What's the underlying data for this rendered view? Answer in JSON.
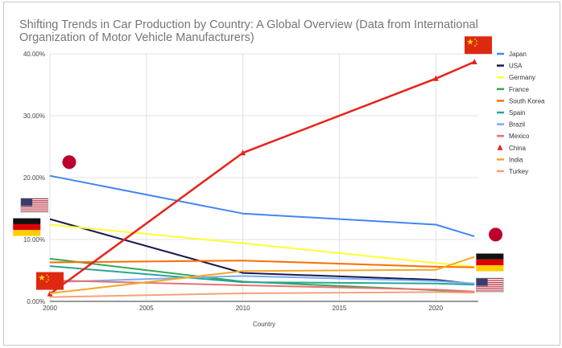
{
  "chart_data": {
    "type": "line",
    "title": "Shifting Trends in Car Production by Country: A Global Overview (Data from International Organization of Motor Vehicle Manufacturers)",
    "xlabel": "Country",
    "ylabel": "",
    "x": [
      2000,
      2010,
      2020,
      2022
    ],
    "xlim": [
      2000,
      2022.2
    ],
    "ylim": [
      0,
      40
    ],
    "xticks": [
      2000,
      2005,
      2010,
      2015,
      2020
    ],
    "yticks": [
      0,
      10,
      20,
      30,
      40
    ],
    "ytick_labels": [
      "0.00%",
      "10.00%",
      "20.00%",
      "30.00%",
      "40.00%"
    ],
    "grid": true,
    "legend_position": "right",
    "series": [
      {
        "name": "Japan",
        "color": "#4285f4",
        "marker": "none",
        "values": [
          20.3,
          14.2,
          12.4,
          10.5
        ]
      },
      {
        "name": "USA",
        "color": "#1a1a4e",
        "marker": "none",
        "values": [
          13.3,
          4.6,
          3.5,
          2.8
        ]
      },
      {
        "name": "Germany",
        "color": "#ffff33",
        "marker": "none",
        "values": [
          12.4,
          9.4,
          6.2,
          5.6
        ]
      },
      {
        "name": "France",
        "color": "#34a853",
        "marker": "none",
        "values": [
          6.9,
          3.2,
          1.8,
          1.5
        ]
      },
      {
        "name": "South Korea",
        "color": "#ff6d00",
        "marker": "none",
        "values": [
          6.3,
          6.6,
          5.6,
          5.5
        ]
      },
      {
        "name": "Spain",
        "color": "#26a69a",
        "marker": "none",
        "values": [
          5.7,
          3.1,
          2.9,
          2.7
        ]
      },
      {
        "name": "Brazil",
        "color": "#7baaf7",
        "marker": "none",
        "values": [
          3.1,
          4.1,
          3.3,
          2.9
        ]
      },
      {
        "name": "Mexico",
        "color": "#e57373",
        "marker": "none",
        "values": [
          3.4,
          2.6,
          1.9,
          1.6
        ]
      },
      {
        "name": "China",
        "color": "#e8221b",
        "marker": "triangle",
        "values": [
          1.2,
          24.0,
          36.0,
          38.7
        ]
      },
      {
        "name": "India",
        "color": "#f5a623",
        "marker": "none",
        "values": [
          1.3,
          4.9,
          5.1,
          7.2
        ]
      },
      {
        "name": "Turkey",
        "color": "#f4a27a",
        "marker": "none",
        "values": [
          0.7,
          1.3,
          1.5,
          1.4
        ]
      }
    ],
    "annotations": [
      {
        "kind": "flag",
        "country": "China",
        "icon": "china-flag-icon",
        "x": 2000,
        "y": 3.3
      },
      {
        "kind": "flag",
        "country": "Japan",
        "icon": "japan-flag-icon",
        "x": 2001,
        "y": 22.5
      },
      {
        "kind": "flag",
        "country": "USA",
        "icon": "usa-flag-icon",
        "x": 1999.2,
        "y": 15.5
      },
      {
        "kind": "flag",
        "country": "Germany",
        "icon": "germany-flag-icon",
        "x": 1998.8,
        "y": 12.0
      },
      {
        "kind": "flag",
        "country": "China",
        "icon": "china-flag-icon",
        "x": 2022.2,
        "y": 41.4
      },
      {
        "kind": "flag",
        "country": "Japan",
        "icon": "japan-flag-icon",
        "x": 2023.1,
        "y": 10.8
      },
      {
        "kind": "flag",
        "country": "Germany",
        "icon": "germany-flag-icon",
        "x": 2022.8,
        "y": 6.3
      },
      {
        "kind": "flag",
        "country": "USA",
        "icon": "usa-flag-icon",
        "x": 2022.8,
        "y": 2.6
      }
    ]
  }
}
